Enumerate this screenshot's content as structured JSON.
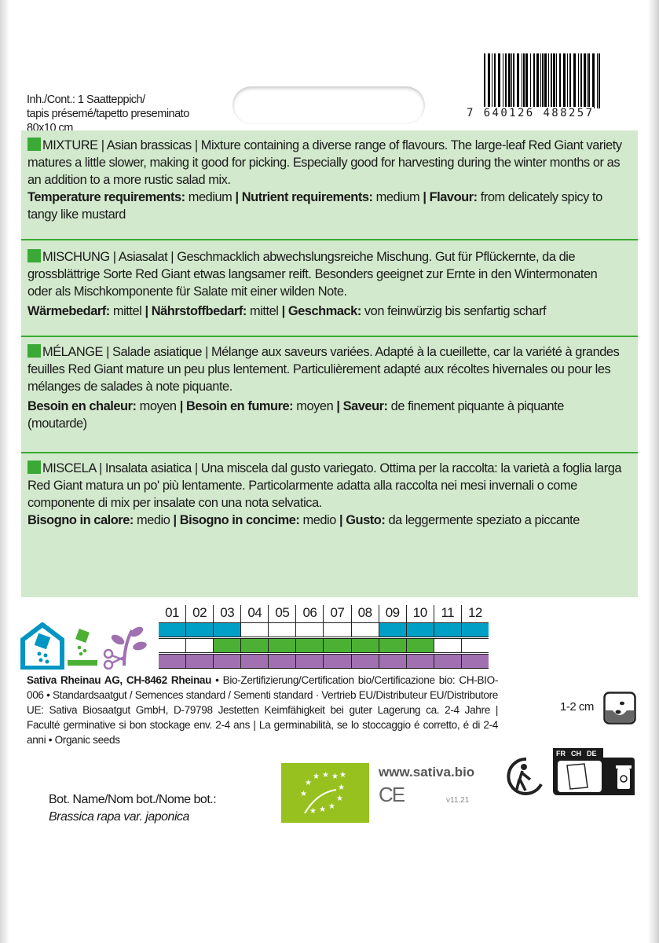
{
  "header": {
    "contents_lines": [
      "Inh./Cont.: 1 Saatteppich/",
      "tapis présemé/tapetto preseminato",
      "80x10 cm"
    ],
    "barcode_number": "7 640126 488257"
  },
  "sections": [
    {
      "lang": "en",
      "text": "MIXTURE | Asian brassicas | Mixture containing a diverse range of flavours. The large-leaf Red Giant variety matures a little slower, making it good for picking. Especially good for harvesting during the winter months or as an addition to a more rustic salad mix.",
      "props": [
        {
          "label": "Temperature requirements:",
          "value": " medium "
        },
        {
          "label": "| Nutrient requirements:",
          "value": " medium "
        },
        {
          "label": "| Flavour:",
          "value": " from delicately spicy to tangy like mustard"
        }
      ]
    },
    {
      "lang": "de",
      "text": "MISCHUNG | Asiasalat | Geschmacklich abwechslungsreiche Mischung. Gut für Pflückernte, da die grossblättrige Sorte Red Giant etwas langsamer reift. Besonders geeignet zur Ernte in den Wintermonaten oder als Mischkomponente für Salate mit einer wilden Note.",
      "props": [
        {
          "label": "Wärmebedarf:",
          "value": " mittel "
        },
        {
          "label": "| Nährstoffbedarf:",
          "value": " mittel "
        },
        {
          "label": "| Geschmack:",
          "value": " von feinwürzig bis senfartig scharf"
        }
      ]
    },
    {
      "lang": "fr",
      "text": "MÉLANGE | Salade asiatique | Mélange aux saveurs variées. Adapté à la cueillette, car la variété à grandes feuilles Red Giant mature un peu plus lentement. Particulièrement adapté aux récoltes hivernales ou pour les mélanges de salades à note piquante.",
      "props": [
        {
          "label": "Besoin en chaleur:",
          "value": " moyen "
        },
        {
          "label": "| Besoin en fumure:",
          "value": " moyen "
        },
        {
          "label": "| Saveur:",
          "value": " de finement piquante à piquante (moutarde)"
        }
      ]
    },
    {
      "lang": "it",
      "text": "MISCELA | Insalata asiatica | Una miscela dal gusto variegato. Ottima per la raccolta: la varietà a foglia larga Red Giant matura un po' più lentamente. Particolarmente adatta alla raccolta nei mesi invernali o come componente di mix per insalate con una nota selvatica.",
      "props": [
        {
          "label": "Bisogno in calore:",
          "value": " medio "
        },
        {
          "label": "| Bisogno in concime:",
          "value": " medio "
        },
        {
          "label": "| Gusto:",
          "value": " da leggermente speziato a piccante"
        }
      ]
    }
  ],
  "calendar": {
    "months": [
      "01",
      "02",
      "03",
      "04",
      "05",
      "06",
      "07",
      "08",
      "09",
      "10",
      "11",
      "12"
    ],
    "rows": [
      {
        "icon": "greenhouse-sowing-icon",
        "color": "#00a0c6",
        "active": [
          1,
          1,
          1,
          0,
          0,
          0,
          0,
          0,
          1,
          1,
          1,
          1
        ]
      },
      {
        "icon": "outdoor-sowing-icon",
        "color": "#4cb034",
        "active": [
          0,
          0,
          1,
          1,
          1,
          1,
          1,
          1,
          1,
          1,
          0,
          0
        ]
      },
      {
        "icon": "harvest-icon",
        "color": "#a070b0",
        "active": [
          1,
          1,
          1,
          1,
          1,
          1,
          1,
          1,
          1,
          1,
          1,
          1
        ]
      }
    ]
  },
  "legal": {
    "company": "Sativa Rheinau AG, CH-8462 Rheinau",
    "text": " • Bio-Zertifizierung/Certification bio/Certificazione bio: CH-BIO-006 • Standardsaatgut / Semences standard / Sementi standard · Vertrieb EU/Distributeur EU/Distributore UE: Sativa Biosaatgut GmbH, D-79798 Jestetten Keimfähigkeit bei guter Lagerung ca. 2-4 Jahre | Faculté germinative si bon stockage env. 2-4 ans | La germinabilità, se lo stoccaggio é corretto, é di 2-4 anni • Organic seeds"
  },
  "sowing_depth": "1-2 cm",
  "botanical": {
    "label": "Bot. Name/Nom bot./Nome bot.:",
    "name": "Brassica rapa var. japonica"
  },
  "footer": {
    "website": "www.sativa.bio",
    "ce_mark": "CE",
    "version": "v11.21",
    "recycling_countries": [
      "FR",
      "CH",
      "DE"
    ]
  },
  "colors": {
    "panel": "#d3e9cd",
    "accent_green": "#3aa935",
    "eu_logo": "#96c11f"
  }
}
